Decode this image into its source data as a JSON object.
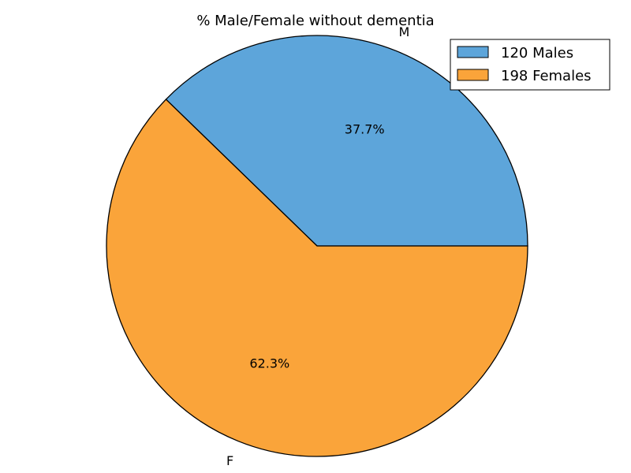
{
  "chart_data": {
    "type": "pie",
    "title": "% Male/Female without dementia",
    "categories": [
      "M",
      "F"
    ],
    "values": [
      120,
      198
    ],
    "percent_labels": [
      "37.7%",
      "62.3%"
    ],
    "legend": [
      "120 Males",
      "198 Females"
    ],
    "legend_position": "top-right",
    "colors": [
      "#5DA5DA",
      "#FAA43A"
    ],
    "edge_color": "#000000",
    "start_angle_deg": 0,
    "direction": "counterclockwise"
  }
}
